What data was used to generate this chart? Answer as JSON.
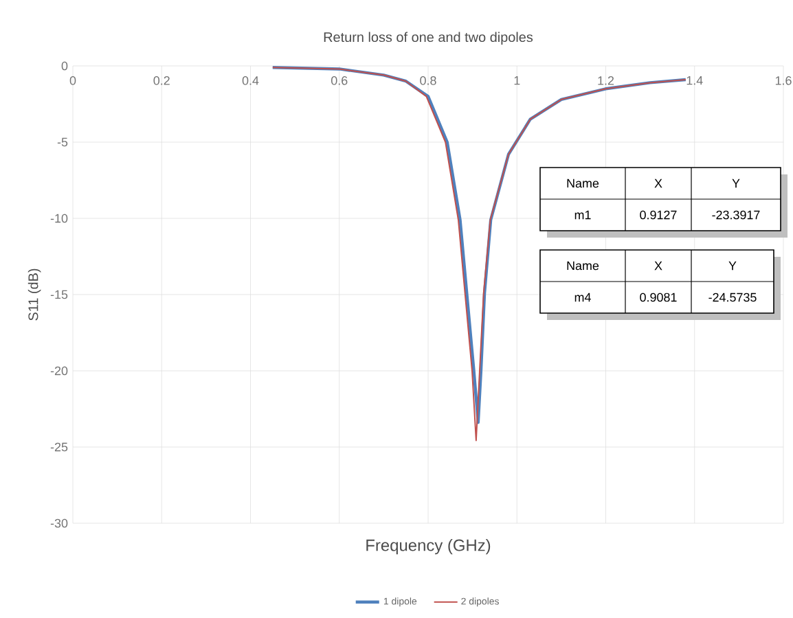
{
  "chart_data": {
    "type": "line",
    "title": "Return loss of one and two dipoles",
    "xlabel": "Frequency (GHz)",
    "ylabel": "S11 (dB)",
    "xlim": [
      0,
      1.6
    ],
    "xticks": [
      0,
      0.2,
      0.4,
      0.6,
      0.8,
      1,
      1.2,
      1.4,
      1.6
    ],
    "ylim": [
      -30,
      0
    ],
    "yticks": [
      -30,
      -25,
      -20,
      -15,
      -10,
      -5,
      0
    ],
    "grid": true,
    "legend": "bottom",
    "marker": "none",
    "line_style": "solid",
    "annotations": [
      "Name",
      "X",
      "Y",
      "m1",
      "0.9127",
      "-23.3917",
      "Name",
      "X",
      "Y",
      "m4",
      "0.9081",
      "-24.5735"
    ],
    "series": [
      {
        "name": "1 dipole",
        "color": "#4f81bd",
        "x": [
          0.45,
          0.6,
          0.7,
          0.75,
          0.8,
          0.843,
          0.872,
          0.887,
          0.903,
          0.9127,
          0.919,
          0.927,
          0.941,
          0.981,
          1.03,
          1.1,
          1.2,
          1.3,
          1.38
        ],
        "values": [
          -0.1,
          -0.2,
          -0.6,
          -1.0,
          -2.0,
          -5.0,
          -10.1,
          -14.9,
          -20,
          -23.39,
          -20,
          -14.9,
          -10.1,
          -5.8,
          -3.5,
          -2.2,
          -1.5,
          -1.1,
          -0.9
        ]
      },
      {
        "name": "2 dipoles",
        "color": "#c0504d",
        "x": [
          0.45,
          0.6,
          0.7,
          0.75,
          0.796,
          0.839,
          0.868,
          0.883,
          0.899,
          0.9081,
          0.916,
          0.925,
          0.94,
          0.981,
          1.03,
          1.1,
          1.2,
          1.3,
          1.38
        ],
        "values": [
          -0.1,
          -0.2,
          -0.6,
          -1.0,
          -2.0,
          -5.0,
          -10.1,
          -14.9,
          -20,
          -24.57,
          -20,
          -14.9,
          -10.1,
          -5.8,
          -3.5,
          -2.2,
          -1.5,
          -1.1,
          -0.9
        ]
      }
    ]
  }
}
